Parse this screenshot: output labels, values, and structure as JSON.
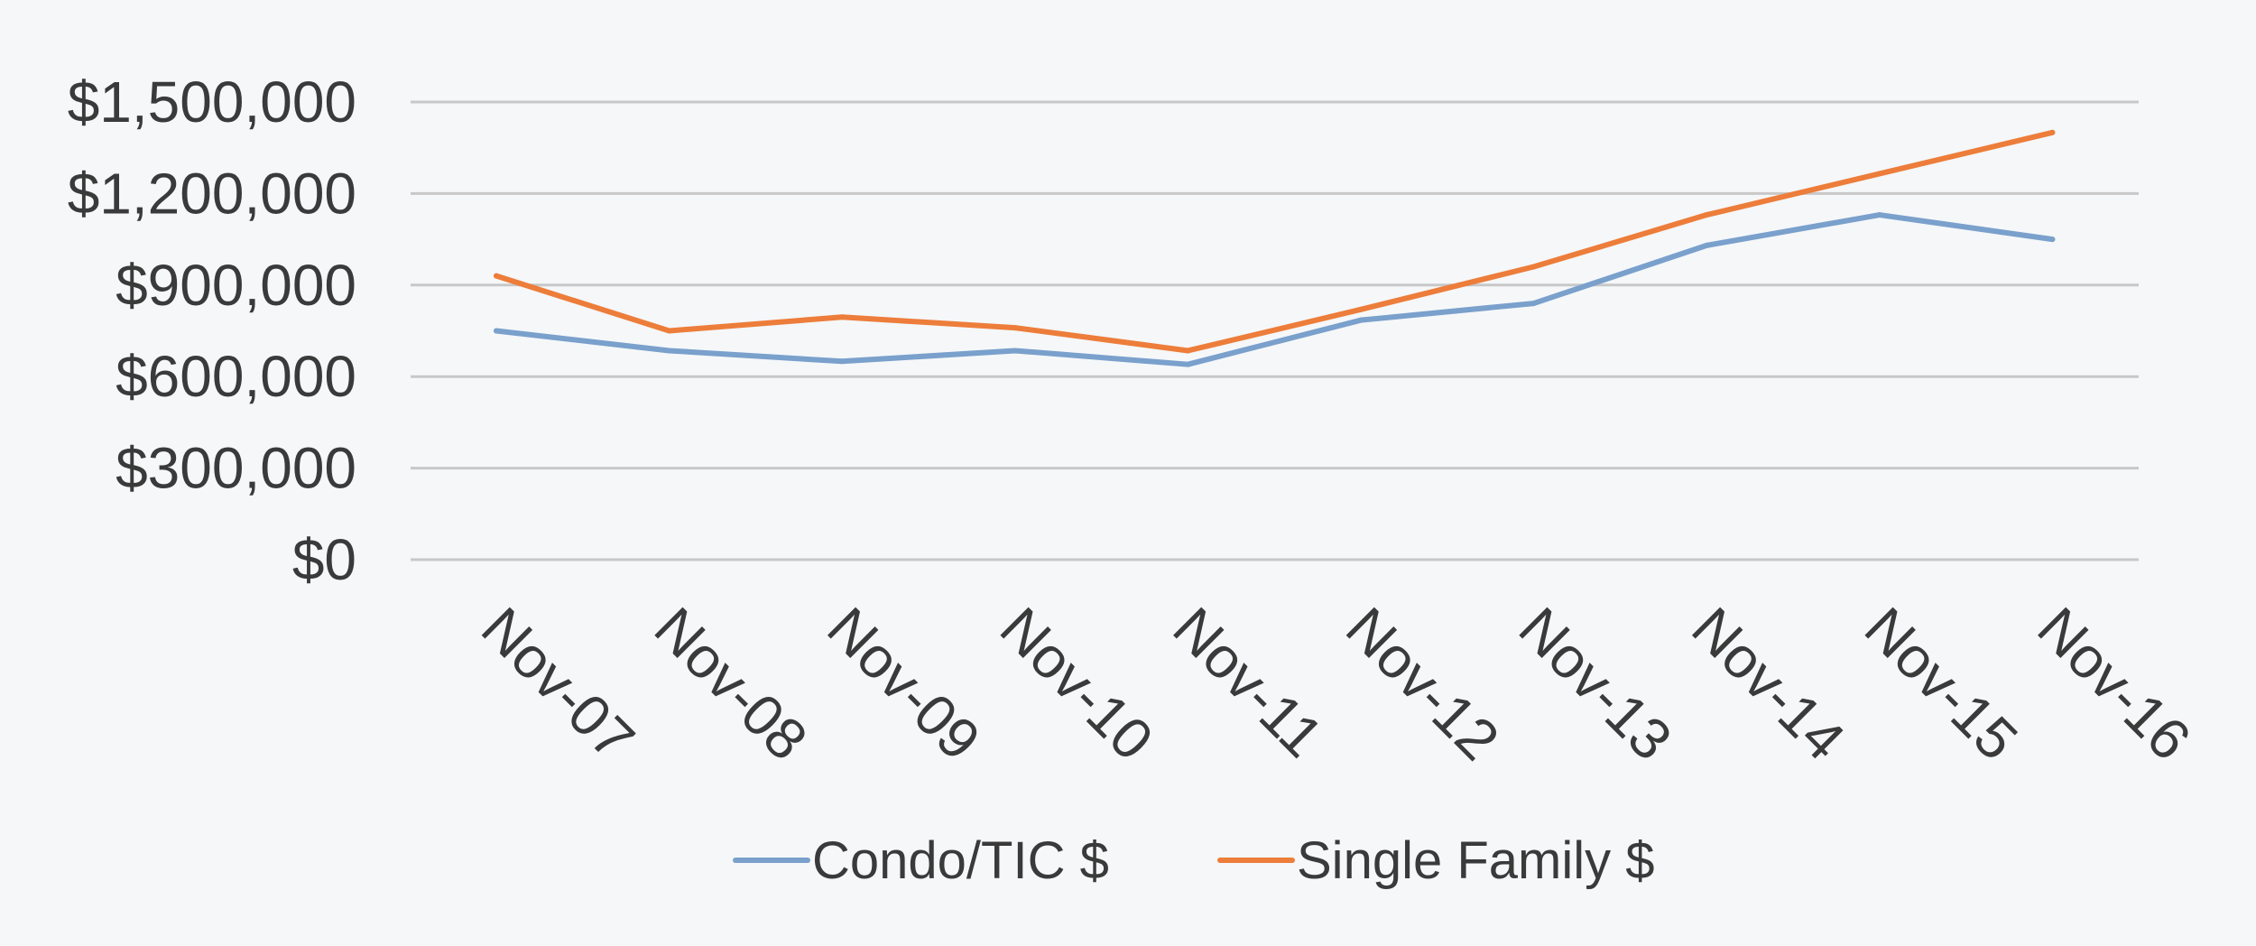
{
  "chart_data": {
    "type": "line",
    "categories": [
      "Nov-07",
      "Nov-08",
      "Nov-09",
      "Nov-10",
      "Nov-11",
      "Nov-12",
      "Nov-13",
      "Nov-14",
      "Nov-15",
      "Nov-16"
    ],
    "series": [
      {
        "name": "Condo/TIC $",
        "color": "#7aa0cc",
        "values": [
          750000,
          685000,
          650000,
          685000,
          640000,
          785000,
          840000,
          1030000,
          1130000,
          1050000
        ]
      },
      {
        "name": "Single Family $",
        "color": "#ed7d3a",
        "values": [
          930000,
          750000,
          795000,
          760000,
          685000,
          820000,
          960000,
          1130000,
          1265000,
          1400000
        ]
      }
    ],
    "yticks": [
      "$0",
      "$300,000",
      "$600,000",
      "$900,000",
      "$1,200,000",
      "$1,500,000"
    ],
    "ylim": [
      0,
      1500000
    ],
    "ytick_step": 300000,
    "grid": true,
    "legend_position": "bottom"
  }
}
